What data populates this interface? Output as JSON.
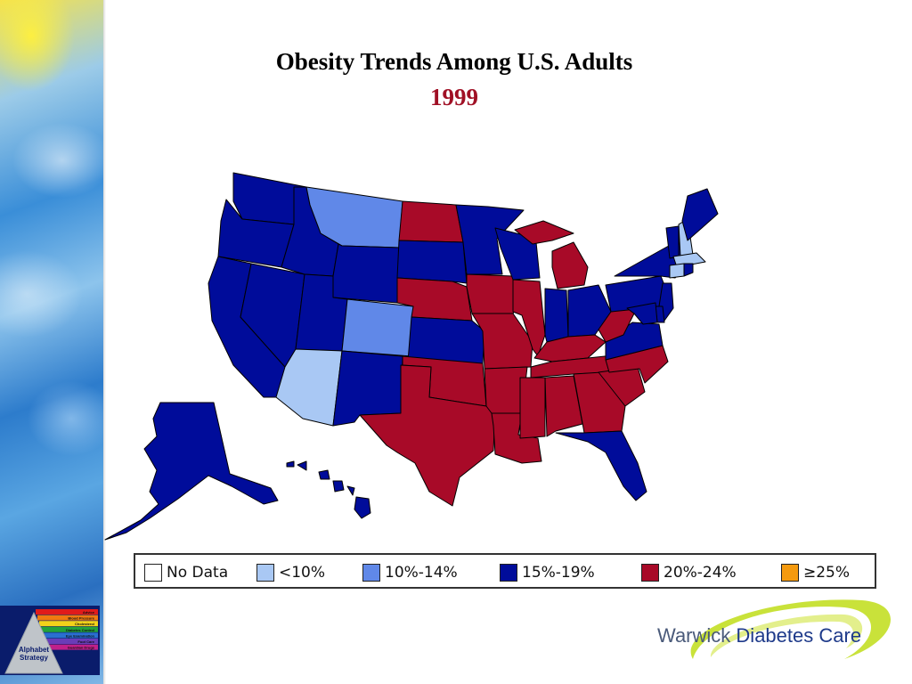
{
  "title": "Obesity Trends Among U.S. Adults",
  "year": "1999",
  "legend": [
    {
      "label": "No Data",
      "color": "#ffffff"
    },
    {
      "label": "<10%",
      "color": "#a9c8f4"
    },
    {
      "label": "10%-14%",
      "color": "#6088e8"
    },
    {
      "label": "15%-19%",
      "color": "#000c9a"
    },
    {
      "label": "20%-24%",
      "color": "#a80a28"
    },
    {
      "label": "≥25%",
      "color": "#f59a0e"
    }
  ],
  "states": [
    {
      "id": "WA",
      "category": "15%-19%"
    },
    {
      "id": "OR",
      "category": "15%-19%"
    },
    {
      "id": "CA",
      "category": "15%-19%"
    },
    {
      "id": "NV",
      "category": "15%-19%"
    },
    {
      "id": "ID",
      "category": "15%-19%"
    },
    {
      "id": "MT",
      "category": "10%-14%"
    },
    {
      "id": "WY",
      "category": "15%-19%"
    },
    {
      "id": "UT",
      "category": "15%-19%"
    },
    {
      "id": "CO",
      "category": "10%-14%"
    },
    {
      "id": "AZ",
      "category": "<10%"
    },
    {
      "id": "NM",
      "category": "15%-19%"
    },
    {
      "id": "ND",
      "category": "20%-24%"
    },
    {
      "id": "SD",
      "category": "15%-19%"
    },
    {
      "id": "NE",
      "category": "20%-24%"
    },
    {
      "id": "KS",
      "category": "15%-19%"
    },
    {
      "id": "OK",
      "category": "20%-24%"
    },
    {
      "id": "TX",
      "category": "20%-24%"
    },
    {
      "id": "MN",
      "category": "15%-19%"
    },
    {
      "id": "IA",
      "category": "20%-24%"
    },
    {
      "id": "MO",
      "category": "20%-24%"
    },
    {
      "id": "AR",
      "category": "20%-24%"
    },
    {
      "id": "LA",
      "category": "20%-24%"
    },
    {
      "id": "WI",
      "category": "15%-19%"
    },
    {
      "id": "IL",
      "category": "20%-24%"
    },
    {
      "id": "MI",
      "category": "20%-24%"
    },
    {
      "id": "IN",
      "category": "15%-19%"
    },
    {
      "id": "OH",
      "category": "15%-19%"
    },
    {
      "id": "KY",
      "category": "20%-24%"
    },
    {
      "id": "TN",
      "category": "20%-24%"
    },
    {
      "id": "MS",
      "category": "20%-24%"
    },
    {
      "id": "AL",
      "category": "20%-24%"
    },
    {
      "id": "GA",
      "category": "20%-24%"
    },
    {
      "id": "FL",
      "category": "15%-19%"
    },
    {
      "id": "SC",
      "category": "20%-24%"
    },
    {
      "id": "NC",
      "category": "20%-24%"
    },
    {
      "id": "VA",
      "category": "15%-19%"
    },
    {
      "id": "WV",
      "category": "20%-24%"
    },
    {
      "id": "PA",
      "category": "15%-19%"
    },
    {
      "id": "NY",
      "category": "15%-19%"
    },
    {
      "id": "NJ",
      "category": "15%-19%"
    },
    {
      "id": "DE",
      "category": "15%-19%"
    },
    {
      "id": "MD",
      "category": "15%-19%"
    },
    {
      "id": "VT",
      "category": "15%-19%"
    },
    {
      "id": "NH",
      "category": "<10%"
    },
    {
      "id": "MA",
      "category": "<10%"
    },
    {
      "id": "CT",
      "category": "<10%"
    },
    {
      "id": "RI",
      "category": "15%-19%"
    },
    {
      "id": "ME",
      "category": "15%-19%"
    },
    {
      "id": "AK",
      "category": "15%-19%"
    },
    {
      "id": "HI",
      "category": "15%-19%"
    }
  ],
  "alphabet_strategy": {
    "label_line1": "Alphabet",
    "label_line2": "Strategy",
    "bands": [
      {
        "text": "Advice",
        "color": "#e01b1b"
      },
      {
        "text": "Blood Pressure",
        "color": "#f07a10"
      },
      {
        "text": "Cholesterol",
        "color": "#f3d21a"
      },
      {
        "text": "Diabetes Control",
        "color": "#23a23a"
      },
      {
        "text": "Eye Examination",
        "color": "#2a6fd0"
      },
      {
        "text": "Foot Care",
        "color": "#6a3db8"
      },
      {
        "text": "Guardian Drugs",
        "color": "#c0208a"
      }
    ]
  },
  "brand": {
    "part1": "Warwick",
    "part2": "Diabetes Care",
    "swoosh_color": "#c9e23a"
  }
}
